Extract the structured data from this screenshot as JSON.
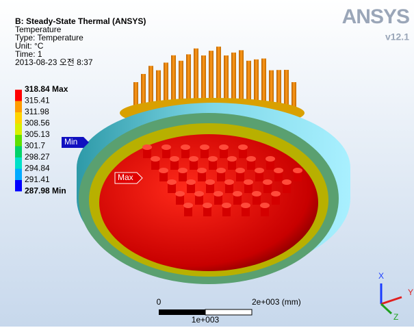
{
  "header": {
    "lines": [
      "B: Steady-State Thermal (ANSYS)",
      "Temperature",
      "Type: Temperature",
      "Unit: °C",
      "Time: 1",
      "2013-08-23 오전 8:37"
    ]
  },
  "legend": {
    "labels": [
      "318.84 Max",
      "315.41",
      "311.98",
      "308.56",
      "305.13",
      "301.7",
      "298.27",
      "294.84",
      "291.41",
      "287.98 Min"
    ],
    "colors": [
      "#ff0000",
      "#ff9c00",
      "#ffd400",
      "#d8f000",
      "#5ee000",
      "#00d26a",
      "#00e0c8",
      "#00aaff",
      "#0000ff"
    ]
  },
  "markers": {
    "min": "Min",
    "max": "Max"
  },
  "logo": {
    "brand": "ANSYS",
    "version": "v12.1"
  },
  "scale": {
    "start": "0",
    "end": "2e+003 (mm)",
    "mid": "1e+003"
  },
  "triad": {
    "x": "X",
    "y": "Y",
    "z": "Z"
  }
}
